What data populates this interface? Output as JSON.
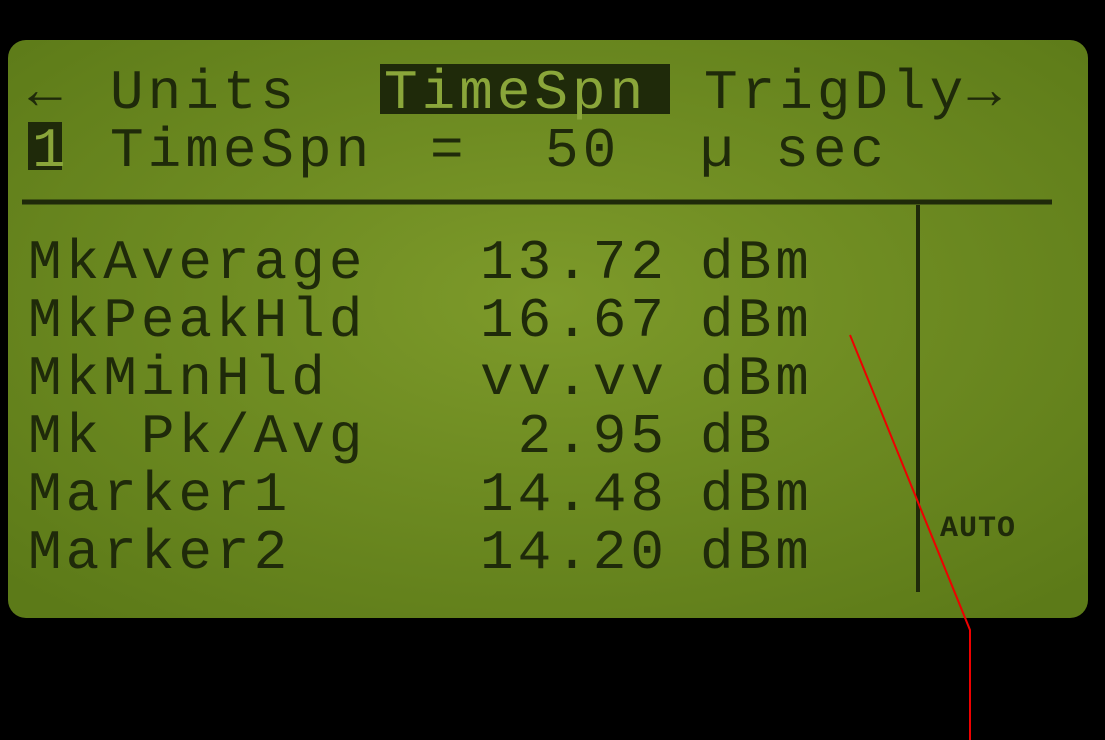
{
  "header": {
    "menu": {
      "left_arrow": "←",
      "items": [
        "Units",
        "TimeSpn",
        "TrigDly→"
      ]
    },
    "setting": {
      "channel": "1",
      "label": "TimeSpn",
      "equals": "=",
      "value": "50",
      "unit": "µ sec"
    }
  },
  "table": {
    "rows": [
      [
        "MkAverage",
        "13.72",
        "dBm"
      ],
      [
        "MkPeakHld",
        "16.67",
        "dBm"
      ],
      [
        "MkMinHld",
        "vv.vv",
        "dBm"
      ],
      [
        "Mk Pk/Avg",
        "2.95",
        "dB"
      ],
      [
        "Marker1",
        "14.48",
        "dBm"
      ],
      [
        "Marker2",
        "14.20",
        "dBm"
      ]
    ]
  },
  "side_label": "AUTO"
}
